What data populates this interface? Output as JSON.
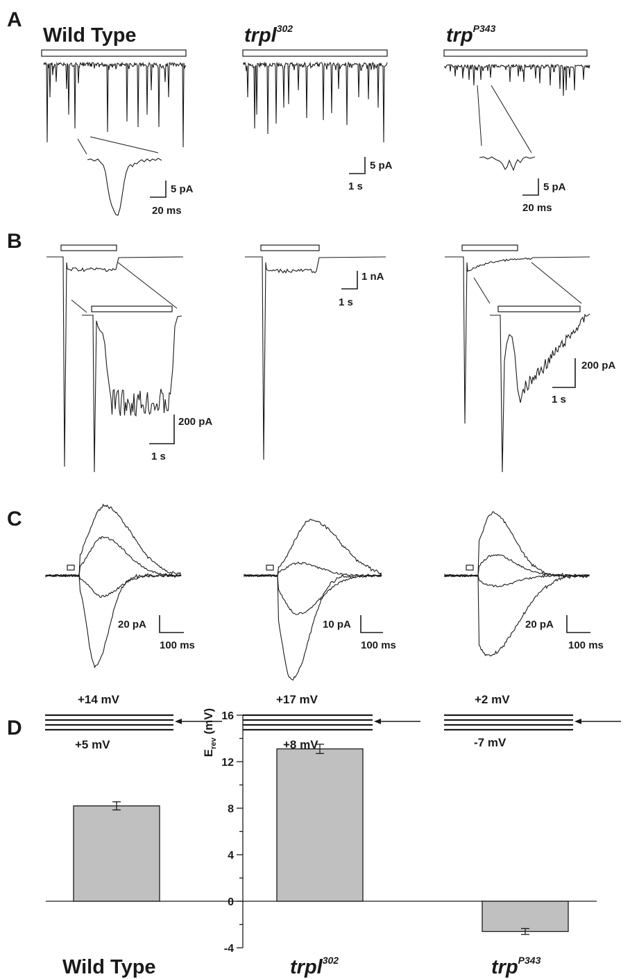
{
  "panels": {
    "A": "A",
    "B": "B",
    "C": "C",
    "D": "D"
  },
  "genotypes": [
    {
      "base": "Wild Type",
      "sup": ""
    },
    {
      "base": "trpl",
      "sup": "302"
    },
    {
      "base": "trp",
      "sup": "P343"
    }
  ],
  "panel_a": {
    "scale_inset_wt": {
      "y": "5 pA",
      "x": "20 ms"
    },
    "scale_main": {
      "y": "5 pA",
      "x": "1 s"
    },
    "scale_inset_trp": {
      "y": "5 pA",
      "x": "20 ms"
    }
  },
  "panel_b": {
    "scale_main": {
      "y": "1 nA",
      "x": "1 s"
    },
    "scale_inset_wt": {
      "y": "200 pA",
      "x": "1 s"
    },
    "scale_inset_trp": {
      "y": "200 pA",
      "x": "1 s"
    }
  },
  "panel_c": {
    "scales": [
      {
        "y": "20 pA",
        "x": "100 ms"
      },
      {
        "y": "10 pA",
        "x": "100 ms"
      },
      {
        "y": "20 pA",
        "x": "100 ms"
      }
    ],
    "voltages": [
      {
        "top": "+14 mV",
        "bottom": "+5 mV"
      },
      {
        "top": "+17 mV",
        "bottom": "+8 mV"
      },
      {
        "top": "+2 mV",
        "bottom": "-7 mV"
      }
    ]
  },
  "chart_data": {
    "type": "bar",
    "categories": [
      "Wild Type",
      "trpl302",
      "trpP343"
    ],
    "values": [
      8.2,
      13.1,
      -2.6
    ],
    "errors": [
      0.35,
      0.4,
      0.25
    ],
    "ylabel_base": "E",
    "ylabel_sub": "rev",
    "ylabel_unit": " (mV)",
    "ylim": [
      -4,
      16
    ],
    "yticks": [
      -4,
      0,
      4,
      8,
      12,
      16
    ],
    "bar_color": "#c0c0c0",
    "grid": false
  }
}
